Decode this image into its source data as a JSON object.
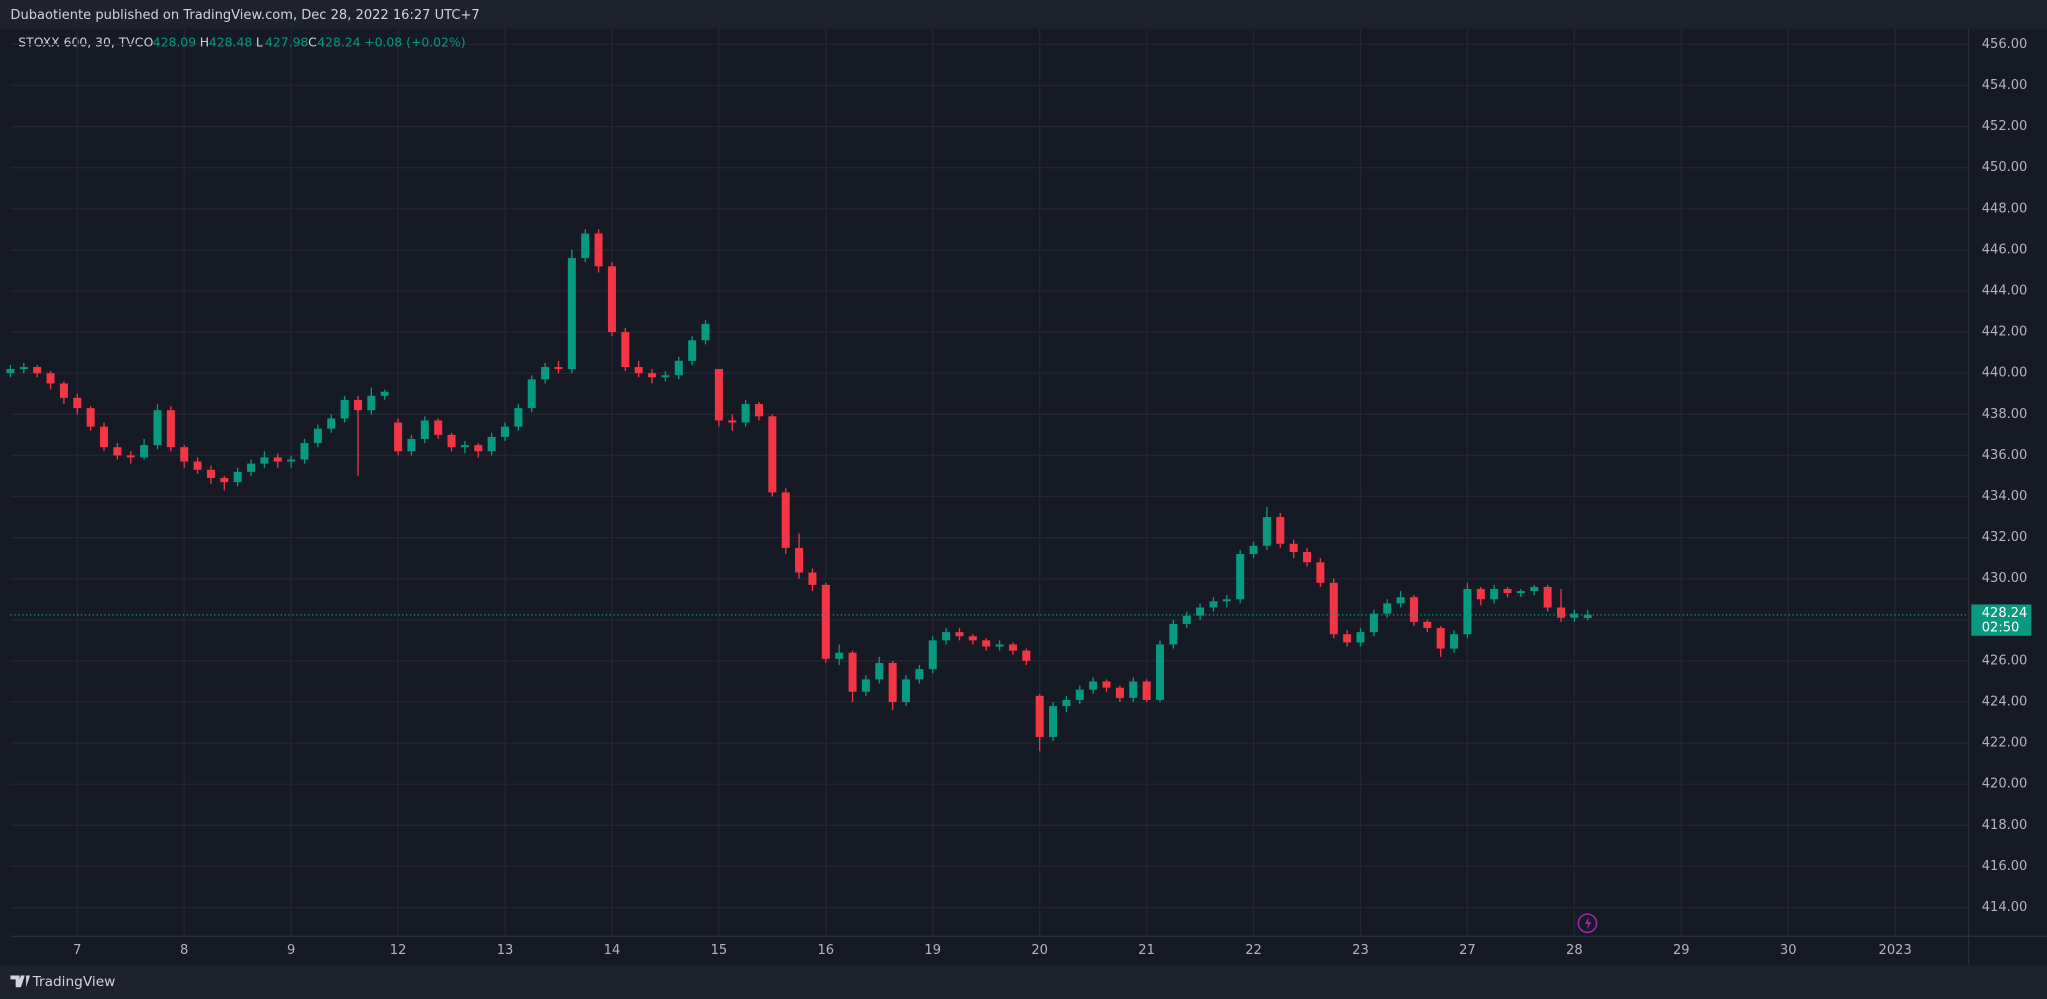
{
  "chart_data": {
    "type": "candlestick",
    "header": "Dubaotiente published on TradingView.com, Dec 28, 2022 16:27 UTC+7",
    "symbol": "STOXX 600, 30, TVC",
    "ohlc_letters": [
      "O",
      "H",
      "L",
      "C"
    ],
    "change": "+0.08 (+0.02%)",
    "countdown": "02:50",
    "brand": "TradingView",
    "up_color": "#089981",
    "down_color": "#f23645",
    "grid": true,
    "xlim": [
      0,
      146.5
    ],
    "xticks": [
      {
        "value": 5,
        "label": "7"
      },
      {
        "value": 13,
        "label": "8"
      },
      {
        "value": 21,
        "label": "9"
      },
      {
        "value": 29,
        "label": "12"
      },
      {
        "value": 37,
        "label": "13"
      },
      {
        "value": 45,
        "label": "14"
      },
      {
        "value": 53,
        "label": "15"
      },
      {
        "value": 61,
        "label": "16"
      },
      {
        "value": 69,
        "label": "19"
      },
      {
        "value": 77,
        "label": "20"
      },
      {
        "value": 85,
        "label": "21"
      },
      {
        "value": 93,
        "label": "22"
      },
      {
        "value": 101,
        "label": "23"
      },
      {
        "value": 109,
        "label": "27"
      },
      {
        "value": 117,
        "label": "28"
      },
      {
        "value": 125,
        "label": "29"
      },
      {
        "value": 133,
        "label": "30"
      },
      {
        "value": 141,
        "label": "2023"
      }
    ],
    "ylim": [
      412.6,
      456.76
    ],
    "yticks": [
      {
        "value": 414,
        "label": "414.00"
      },
      {
        "value": 416,
        "label": "416.00"
      },
      {
        "value": 418,
        "label": "418.00"
      },
      {
        "value": 420,
        "label": "420.00"
      },
      {
        "value": 422,
        "label": "422.00"
      },
      {
        "value": 424,
        "label": "424.00"
      },
      {
        "value": 426,
        "label": "426.00"
      },
      {
        "value": 428,
        "label": "428.00"
      },
      {
        "value": 430,
        "label": "430.00"
      },
      {
        "value": 432,
        "label": "432.00"
      },
      {
        "value": 434,
        "label": "434.00"
      },
      {
        "value": 436,
        "label": "436.00"
      },
      {
        "value": 438,
        "label": "438.00"
      },
      {
        "value": 440,
        "label": "440.00"
      },
      {
        "value": 442,
        "label": "442.00"
      },
      {
        "value": 444,
        "label": "444.00"
      },
      {
        "value": 446,
        "label": "446.00"
      },
      {
        "value": 448,
        "label": "448.00"
      },
      {
        "value": 450,
        "label": "450.00"
      },
      {
        "value": 452,
        "label": "452.00"
      },
      {
        "value": 454,
        "label": "454.00"
      },
      {
        "value": 456,
        "label": "456.00"
      }
    ],
    "open": [
      440.0,
      440.2,
      440.3,
      440.0,
      439.5,
      438.8,
      438.3,
      437.4,
      436.4,
      436.0,
      435.9,
      436.5,
      438.2,
      436.4,
      435.7,
      435.3,
      434.9,
      434.7,
      435.2,
      435.6,
      435.9,
      435.7,
      435.8,
      436.6,
      437.3,
      437.8,
      438.7,
      438.2,
      438.9,
      437.6,
      436.2,
      436.8,
      437.7,
      437.0,
      436.4,
      436.5,
      436.2,
      436.9,
      437.4,
      438.3,
      439.7,
      440.3,
      440.2,
      445.6,
      446.8,
      445.2,
      442.0,
      440.3,
      440.0,
      439.8,
      439.9,
      440.6,
      441.6,
      440.2,
      437.7,
      437.6,
      438.5,
      437.9,
      434.2,
      431.5,
      430.3,
      429.7,
      426.1,
      426.4,
      424.5,
      425.1,
      425.9,
      424.0,
      425.1,
      425.6,
      427.0,
      427.4,
      427.2,
      427.0,
      426.7,
      426.8,
      426.5,
      424.3,
      422.3,
      423.8,
      424.1,
      424.6,
      425.0,
      424.7,
      424.2,
      425.0,
      424.1,
      426.8,
      427.8,
      428.2,
      428.6,
      428.9,
      429.0,
      431.2,
      431.6,
      433.0,
      431.7,
      431.3,
      430.8,
      429.8,
      427.3,
      426.9,
      427.4,
      428.3,
      428.8,
      429.1,
      427.9,
      427.6,
      426.6,
      427.3,
      429.5,
      429.0,
      429.5,
      429.3,
      429.4,
      429.6,
      428.6,
      428.1,
      428.09
    ],
    "high": [
      440.4,
      440.5,
      440.4,
      440.1,
      439.6,
      439.0,
      438.4,
      437.6,
      436.6,
      436.2,
      436.8,
      438.5,
      438.4,
      436.5,
      435.9,
      435.5,
      435.0,
      435.4,
      435.8,
      436.2,
      436.1,
      436.0,
      436.8,
      437.5,
      438.0,
      438.9,
      438.9,
      439.3,
      439.2,
      437.8,
      437.0,
      437.9,
      437.8,
      437.1,
      436.7,
      436.6,
      437.1,
      437.6,
      438.5,
      439.9,
      440.5,
      440.6,
      446.0,
      447.0,
      447.0,
      445.4,
      442.2,
      440.6,
      440.2,
      440.1,
      440.8,
      441.8,
      442.6,
      440.2,
      438.0,
      438.7,
      438.6,
      438.0,
      434.4,
      432.2,
      430.5,
      429.8,
      426.8,
      426.5,
      425.3,
      426.2,
      426.0,
      425.3,
      425.8,
      427.2,
      427.6,
      427.6,
      427.3,
      427.1,
      427.0,
      426.9,
      426.6,
      424.4,
      424.0,
      424.3,
      424.8,
      425.2,
      425.1,
      424.8,
      425.2,
      425.1,
      427.0,
      428.0,
      428.4,
      428.8,
      429.1,
      429.2,
      431.4,
      431.8,
      433.5,
      433.2,
      431.9,
      431.5,
      431.0,
      430.0,
      427.5,
      427.6,
      428.5,
      429.0,
      429.4,
      429.2,
      428.0,
      427.7,
      427.5,
      429.8,
      429.6,
      429.7,
      429.6,
      429.5,
      429.7,
      429.7,
      429.5,
      428.5,
      428.48
    ],
    "low": [
      439.8,
      440.0,
      439.8,
      439.2,
      438.5,
      438.0,
      437.2,
      436.2,
      435.8,
      435.6,
      435.8,
      436.3,
      436.2,
      435.4,
      435.1,
      434.6,
      434.3,
      434.5,
      435.0,
      435.4,
      435.4,
      435.4,
      435.6,
      436.4,
      437.1,
      437.6,
      435.0,
      438.0,
      438.7,
      436.0,
      436.0,
      436.6,
      436.8,
      436.2,
      436.1,
      435.9,
      436.0,
      436.7,
      437.2,
      438.1,
      439.5,
      440.0,
      440.0,
      445.4,
      444.9,
      441.8,
      440.1,
      439.8,
      439.5,
      439.6,
      439.7,
      440.4,
      441.4,
      437.4,
      437.2,
      437.4,
      437.7,
      434.0,
      431.2,
      430.0,
      429.4,
      425.9,
      425.8,
      424.0,
      424.3,
      424.9,
      423.6,
      423.8,
      424.9,
      425.4,
      426.8,
      427.0,
      426.8,
      426.5,
      426.5,
      426.3,
      425.8,
      421.6,
      422.1,
      423.5,
      423.9,
      424.4,
      424.5,
      424.0,
      424.0,
      424.0,
      424.0,
      426.6,
      427.6,
      428.0,
      428.4,
      428.6,
      428.8,
      431.0,
      431.4,
      431.5,
      431.0,
      430.6,
      429.6,
      427.1,
      426.7,
      426.7,
      427.2,
      428.1,
      428.6,
      427.7,
      427.4,
      426.2,
      426.4,
      427.1,
      428.7,
      428.8,
      429.1,
      429.1,
      429.2,
      428.4,
      427.9,
      427.9,
      427.98
    ],
    "close": [
      440.2,
      440.3,
      440.0,
      439.5,
      438.8,
      438.3,
      437.4,
      436.4,
      436.0,
      435.9,
      436.5,
      438.2,
      436.4,
      435.7,
      435.3,
      434.9,
      434.7,
      435.2,
      435.6,
      435.9,
      435.7,
      435.8,
      436.6,
      437.3,
      437.8,
      438.7,
      438.2,
      438.9,
      439.1,
      436.2,
      436.8,
      437.7,
      437.0,
      436.4,
      436.5,
      436.2,
      436.9,
      437.4,
      438.3,
      439.7,
      440.3,
      440.2,
      445.6,
      446.8,
      445.2,
      442.0,
      440.3,
      440.0,
      439.8,
      439.9,
      440.6,
      441.6,
      442.4,
      437.7,
      437.6,
      438.5,
      437.9,
      434.2,
      431.5,
      430.3,
      429.7,
      426.1,
      426.4,
      424.5,
      425.1,
      425.9,
      424.0,
      425.1,
      425.6,
      427.0,
      427.4,
      427.2,
      427.0,
      426.7,
      426.8,
      426.5,
      426.0,
      422.3,
      423.8,
      424.1,
      424.6,
      425.0,
      424.7,
      424.2,
      425.0,
      424.1,
      426.8,
      427.8,
      428.2,
      428.6,
      428.9,
      429.0,
      431.2,
      431.6,
      433.0,
      431.7,
      431.3,
      430.8,
      429.8,
      427.3,
      426.9,
      427.4,
      428.3,
      428.8,
      429.1,
      427.9,
      427.6,
      426.6,
      427.3,
      429.5,
      429.0,
      429.5,
      429.3,
      429.4,
      429.6,
      428.6,
      428.1,
      428.3,
      428.24
    ]
  }
}
